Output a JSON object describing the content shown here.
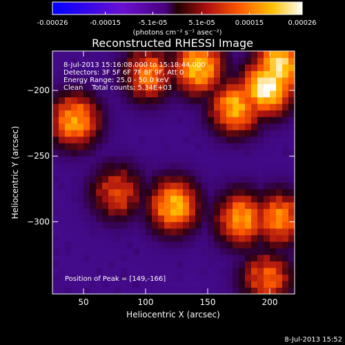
{
  "chart_data": {
    "type": "heatmap",
    "title": "Reconstructed RHESSI Image",
    "xlabel": "Heliocentric X (arcsec)",
    "ylabel": "Heliocentric Y (arcsec)",
    "xlim": [
      25,
      220
    ],
    "ylim": [
      -355,
      -170
    ],
    "xticks": [
      50,
      100,
      150,
      200
    ],
    "yticks": [
      -200,
      -250,
      -300
    ],
    "colorbar": {
      "ticks": [
        "-0.00026",
        "-0.00015",
        "-5.1e-05",
        "5.1e-05",
        "0.00015",
        "0.00026"
      ],
      "tick_values": [
        -0.00026,
        -0.00015,
        -5.1e-05,
        5.1e-05,
        0.00015,
        0.00026
      ],
      "range": [
        -0.00026,
        0.00026
      ],
      "unit_label": "(photons cm⁻² s⁻¹ asec⁻²)",
      "colormap": "blue-purple-red-yellow-white"
    },
    "annotations": [
      "8-Jul-2013 15:16:08.000 to 15:18:44.000",
      "Detectors: 3F 5F 6F 7F 8F 9F, Att 0",
      "Energy Range: 25.0 - 50.0 keV",
      "Clean    Total counts: 5.34E+03"
    ],
    "peak_label": "Position of Peak = [149,-166]",
    "bright_regions": [
      {
        "x": 140,
        "y": -185,
        "level": 0.8
      },
      {
        "x": 195,
        "y": -200,
        "level": 1.0
      },
      {
        "x": 205,
        "y": -185,
        "level": 0.9
      },
      {
        "x": 170,
        "y": -215,
        "level": 0.75
      },
      {
        "x": 40,
        "y": -225,
        "level": 0.7
      },
      {
        "x": 120,
        "y": -290,
        "level": 0.75
      },
      {
        "x": 175,
        "y": -300,
        "level": 0.7
      },
      {
        "x": 205,
        "y": -300,
        "level": 0.65
      },
      {
        "x": 75,
        "y": -280,
        "level": 0.5
      },
      {
        "x": 195,
        "y": -345,
        "level": 0.55
      },
      {
        "x": 100,
        "y": -190,
        "level": 0.6
      }
    ]
  },
  "footer": {
    "timestamp": "8-Jul-2013 15:52"
  }
}
